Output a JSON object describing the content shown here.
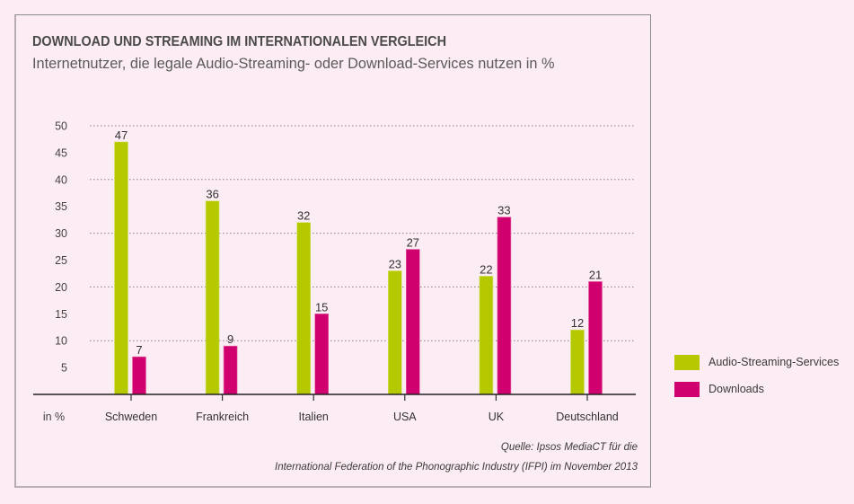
{
  "chart_data": {
    "type": "bar",
    "title": "DOWNLOAD UND STREAMING IM INTERNATIONALEN VERGLEICH",
    "subtitle": "Internetnutzer, die legale Audio-Streaming- oder Download-Services nutzen in %",
    "xlabel": "in %",
    "ylabel": "",
    "categories": [
      "Schweden",
      "Frankreich",
      "Italien",
      "USA",
      "UK",
      "Deutschland"
    ],
    "series": [
      {
        "name": "Audio-Streaming-Services",
        "color": "#b5c800",
        "values": [
          47,
          36,
          32,
          23,
          22,
          12
        ]
      },
      {
        "name": "Downloads",
        "color": "#d0006f",
        "values": [
          7,
          9,
          15,
          27,
          33,
          21
        ]
      }
    ],
    "ylim": [
      0,
      50
    ],
    "yticks": [
      5,
      10,
      15,
      20,
      25,
      30,
      35,
      40,
      45,
      50
    ],
    "gridlines": [
      10,
      20,
      30,
      40,
      50
    ],
    "grid": true,
    "legend_position": "right",
    "source": [
      "Quelle: Ipsos MediaCT für die",
      "International Federation of the Phonographic Industry (IFPI) im November 2013"
    ]
  }
}
